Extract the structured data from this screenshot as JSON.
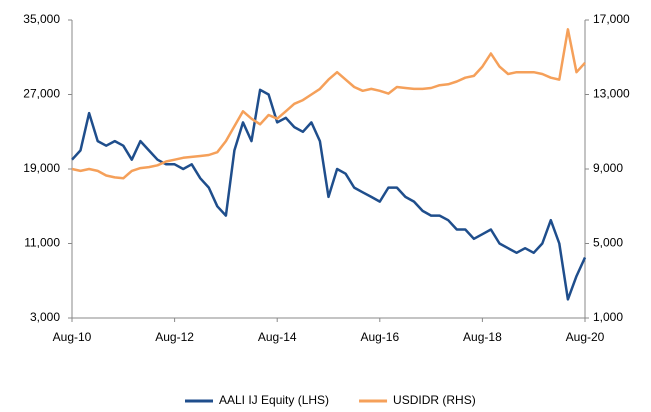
{
  "chart_data": {
    "type": "line",
    "x": [
      "Aug-10",
      "Oct-10",
      "Dec-10",
      "Feb-11",
      "Apr-11",
      "Jun-11",
      "Aug-11",
      "Oct-11",
      "Dec-11",
      "Feb-12",
      "Apr-12",
      "Jun-12",
      "Aug-12",
      "Oct-12",
      "Dec-12",
      "Feb-13",
      "Apr-13",
      "Jun-13",
      "Aug-13",
      "Oct-13",
      "Dec-13",
      "Feb-14",
      "Apr-14",
      "Jun-14",
      "Aug-14",
      "Oct-14",
      "Dec-14",
      "Feb-15",
      "Apr-15",
      "Jun-15",
      "Aug-15",
      "Oct-15",
      "Dec-15",
      "Feb-16",
      "Apr-16",
      "Jun-16",
      "Aug-16",
      "Oct-16",
      "Dec-16",
      "Feb-17",
      "Apr-17",
      "Jun-17",
      "Aug-17",
      "Oct-17",
      "Dec-17",
      "Feb-18",
      "Apr-18",
      "Jun-18",
      "Aug-18",
      "Oct-18",
      "Dec-18",
      "Feb-19",
      "Apr-19",
      "Jun-19",
      "Aug-19",
      "Oct-19",
      "Dec-19",
      "Feb-20",
      "Apr-20",
      "Jun-20",
      "Aug-20"
    ],
    "xticks": [
      "Aug-10",
      "Aug-12",
      "Aug-14",
      "Aug-16",
      "Aug-18",
      "Aug-20"
    ],
    "series": [
      {
        "name": "AALI IJ Equity (LHS)",
        "color": "#1f4e8c",
        "axis": "y",
        "values": [
          20000,
          21000,
          25000,
          22000,
          21500,
          22000,
          21500,
          20000,
          22000,
          21000,
          20000,
          19500,
          19500,
          19000,
          19500,
          18000,
          17000,
          15000,
          14000,
          21000,
          24000,
          22000,
          27500,
          27000,
          24000,
          24500,
          23500,
          23000,
          24000,
          22000,
          16000,
          19000,
          18500,
          17000,
          16500,
          16000,
          15500,
          17000,
          17000,
          16000,
          15500,
          14500,
          14000,
          14000,
          13500,
          12500,
          12500,
          11500,
          12000,
          12500,
          11000,
          10500,
          10000,
          10500,
          10000,
          11000,
          13500,
          11000,
          5000,
          7500,
          9500
        ]
      },
      {
        "name": "USDIDR (RHS)",
        "color": "#f5a05a",
        "axis": "y2",
        "values": [
          9000,
          8900,
          9000,
          8900,
          8650,
          8550,
          8500,
          8900,
          9050,
          9100,
          9200,
          9400,
          9500,
          9600,
          9650,
          9700,
          9750,
          9900,
          10500,
          11300,
          12100,
          11700,
          11400,
          11900,
          11700,
          12100,
          12500,
          12700,
          13000,
          13300,
          13800,
          14200,
          13800,
          13400,
          13200,
          13300,
          13200,
          13050,
          13400,
          13350,
          13300,
          13300,
          13350,
          13500,
          13550,
          13700,
          13900,
          14000,
          14500,
          15200,
          14500,
          14100,
          14200,
          14200,
          14200,
          14100,
          13900,
          13800,
          16500,
          14200,
          14700
        ]
      }
    ],
    "ylim": [
      3000,
      35000
    ],
    "yticks": [
      {
        "value": 3000,
        "label": "3,000"
      },
      {
        "value": 11000,
        "label": "11,000"
      },
      {
        "value": 19000,
        "label": "19,000"
      },
      {
        "value": 27000,
        "label": "27,000"
      },
      {
        "value": 35000,
        "label": "35,000"
      }
    ],
    "y2lim": [
      1000,
      17000
    ],
    "y2ticks": [
      {
        "value": 1000,
        "label": "1,000"
      },
      {
        "value": 5000,
        "label": "5,000"
      },
      {
        "value": 9000,
        "label": "9,000"
      },
      {
        "value": 13000,
        "label": "13,000"
      },
      {
        "value": 17000,
        "label": "17,000"
      }
    ],
    "legend": "bottom"
  }
}
